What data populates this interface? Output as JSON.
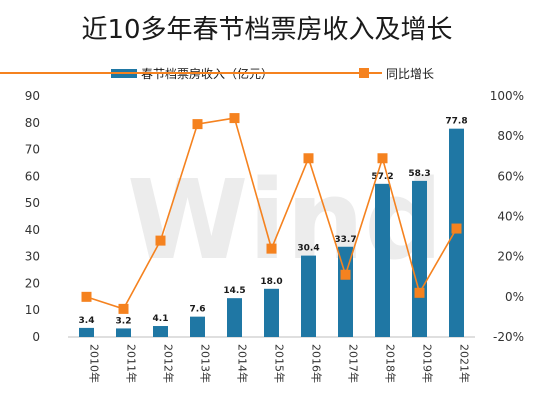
{
  "chart_data": {
    "type": "bar",
    "title": "近10多年春节档票房收入及增长",
    "categories": [
      "2010年",
      "2011年",
      "2012年",
      "2013年",
      "2014年",
      "2015年",
      "2016年",
      "2017年",
      "2018年",
      "2019年",
      "2021年"
    ],
    "series": [
      {
        "name": "春节档票房收入（亿元）",
        "type": "bar",
        "axis": "left",
        "color": "#1f77a4",
        "values": [
          3.4,
          3.2,
          4.1,
          7.6,
          14.5,
          18.0,
          30.4,
          33.7,
          57.2,
          58.3,
          77.8
        ],
        "labels": [
          "3.4",
          "3.2",
          "4.1",
          "7.6",
          "14.5",
          "18.0",
          "30.4",
          "33.7",
          "57.2",
          "58.3",
          "77.8"
        ]
      },
      {
        "name": "同比增长",
        "type": "line",
        "axis": "right",
        "color": "#f5821f",
        "values": [
          0,
          -6,
          28,
          86,
          89,
          24,
          69,
          11,
          69,
          2,
          34
        ]
      }
    ],
    "y_left": {
      "min": 0,
      "max": 90,
      "step": 10,
      "ticks": [
        "0",
        "10",
        "20",
        "30",
        "40",
        "50",
        "60",
        "70",
        "80",
        "90"
      ]
    },
    "y_right": {
      "min": -20,
      "max": 100,
      "step": 20,
      "ticks": [
        "-20%",
        "0%",
        "20%",
        "40%",
        "60%",
        "80%",
        "100%"
      ]
    },
    "legend_position": "top",
    "grid": false,
    "watermark": "Wind"
  }
}
